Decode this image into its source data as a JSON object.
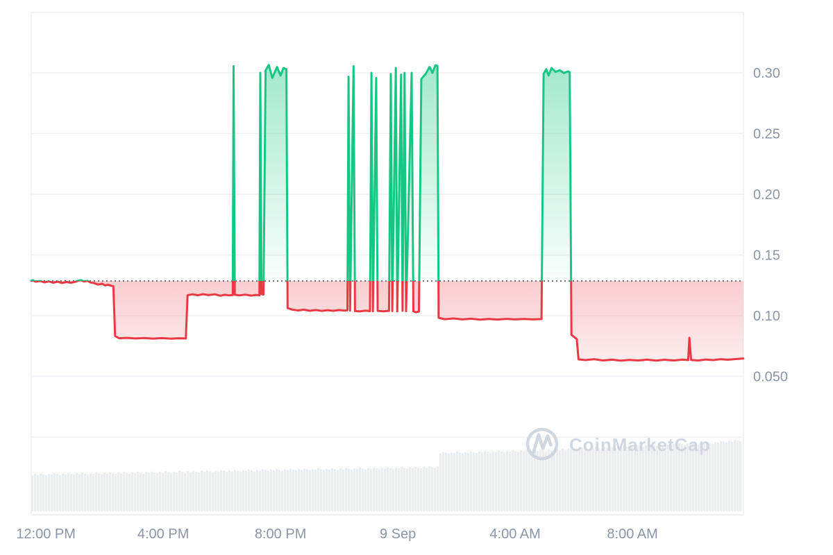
{
  "watermark": {
    "text": "CoinMarketCap",
    "logo": "coinmarketcap-m-in-circle"
  },
  "colors": {
    "up": "#16c784",
    "down": "#ea3943",
    "grid": "#eef0f3",
    "axis_label": "#8b95a7",
    "baseline_dots": "#6b6f76",
    "volume_bar": "#e9edf2",
    "watermark": "#cdd3de",
    "background": "#ffffff"
  },
  "chart_data": {
    "type": "line",
    "title": "",
    "xlabel": "",
    "ylabel": "",
    "grid": true,
    "legend_position": "none",
    "baseline_value": 0.1286,
    "baseline_style": "dotted",
    "x_axis": {
      "unit": "hours_from_start",
      "span_hours": 24.28,
      "ticks": [
        {
          "label": "12:00 PM",
          "hour": 0.5
        },
        {
          "label": "4:00 PM",
          "hour": 4.5
        },
        {
          "label": "8:00 PM",
          "hour": 8.5
        },
        {
          "label": "9 Sep",
          "hour": 12.5
        },
        {
          "label": "4:00 AM",
          "hour": 16.5
        },
        {
          "label": "8:00 AM",
          "hour": 20.5
        }
      ]
    },
    "y_axis": {
      "ticks": [
        {
          "label": "0.30",
          "value": 0.3
        },
        {
          "label": "0.25",
          "value": 0.25
        },
        {
          "label": "0.20",
          "value": 0.2
        },
        {
          "label": "0.15",
          "value": 0.15
        },
        {
          "label": "0.10",
          "value": 0.1
        },
        {
          "label": "0.050",
          "value": 0.05
        }
      ],
      "unlabeled_gridline_value": 0.0
    },
    "series": [
      [
        0.0,
        0.1288
      ],
      [
        0.05,
        0.1292
      ],
      [
        0.15,
        0.128
      ],
      [
        0.3,
        0.1286
      ],
      [
        0.45,
        0.1274
      ],
      [
        0.6,
        0.1283
      ],
      [
        0.75,
        0.1271
      ],
      [
        0.9,
        0.128
      ],
      [
        1.05,
        0.1269
      ],
      [
        1.2,
        0.1277
      ],
      [
        1.35,
        0.1271
      ],
      [
        1.5,
        0.1279
      ],
      [
        1.62,
        0.129
      ],
      [
        1.7,
        0.1292
      ],
      [
        1.8,
        0.1281
      ],
      [
        1.92,
        0.1287
      ],
      [
        2.02,
        0.1273
      ],
      [
        2.15,
        0.1268
      ],
      [
        2.28,
        0.1256
      ],
      [
        2.42,
        0.1263
      ],
      [
        2.52,
        0.1249
      ],
      [
        2.62,
        0.1255
      ],
      [
        2.72,
        0.1247
      ],
      [
        2.8,
        0.1242
      ],
      [
        2.86,
        0.0832
      ],
      [
        3.0,
        0.0814
      ],
      [
        3.25,
        0.0817
      ],
      [
        3.55,
        0.0812
      ],
      [
        3.85,
        0.0816
      ],
      [
        4.15,
        0.0811
      ],
      [
        4.45,
        0.0815
      ],
      [
        4.75,
        0.0811
      ],
      [
        5.05,
        0.0814
      ],
      [
        5.27,
        0.0812
      ],
      [
        5.33,
        0.1168
      ],
      [
        5.5,
        0.1176
      ],
      [
        5.68,
        0.1168
      ],
      [
        5.86,
        0.1177
      ],
      [
        6.05,
        0.1169
      ],
      [
        6.25,
        0.1176
      ],
      [
        6.45,
        0.1164
      ],
      [
        6.6,
        0.1172
      ],
      [
        6.75,
        0.1167
      ],
      [
        6.87,
        0.117
      ],
      [
        6.9,
        0.3055
      ],
      [
        6.94,
        0.1172
      ],
      [
        7.1,
        0.1167
      ],
      [
        7.3,
        0.1173
      ],
      [
        7.5,
        0.1165
      ],
      [
        7.68,
        0.1171
      ],
      [
        7.78,
        0.1167
      ],
      [
        7.81,
        0.3
      ],
      [
        7.85,
        0.1178
      ],
      [
        7.92,
        0.1174
      ],
      [
        7.99,
        0.302
      ],
      [
        8.1,
        0.3065
      ],
      [
        8.22,
        0.2958
      ],
      [
        8.38,
        0.3048
      ],
      [
        8.5,
        0.2978
      ],
      [
        8.6,
        0.304
      ],
      [
        8.7,
        0.303
      ],
      [
        8.74,
        0.1062
      ],
      [
        8.9,
        0.105
      ],
      [
        9.1,
        0.1043
      ],
      [
        9.3,
        0.1049
      ],
      [
        9.5,
        0.104
      ],
      [
        9.7,
        0.1046
      ],
      [
        9.9,
        0.1039
      ],
      [
        10.1,
        0.1045
      ],
      [
        10.3,
        0.104
      ],
      [
        10.5,
        0.1046
      ],
      [
        10.68,
        0.1041
      ],
      [
        10.78,
        0.1045
      ],
      [
        10.82,
        0.2968
      ],
      [
        10.87,
        0.1042
      ],
      [
        10.99,
        0.3055
      ],
      [
        11.04,
        0.1038
      ],
      [
        11.2,
        0.1035
      ],
      [
        11.4,
        0.1041
      ],
      [
        11.55,
        0.1037
      ],
      [
        11.6,
        0.3
      ],
      [
        11.65,
        0.1036
      ],
      [
        11.76,
        0.2958
      ],
      [
        11.81,
        0.104
      ],
      [
        12.0,
        0.1036
      ],
      [
        12.2,
        0.104
      ],
      [
        12.26,
        0.299
      ],
      [
        12.31,
        0.1038
      ],
      [
        12.43,
        0.304
      ],
      [
        12.48,
        0.1035
      ],
      [
        12.61,
        0.2985
      ],
      [
        12.66,
        0.104
      ],
      [
        12.73,
        0.3
      ],
      [
        12.78,
        0.1037
      ],
      [
        12.97,
        0.3
      ],
      [
        13.03,
        0.1036
      ],
      [
        13.12,
        0.1028
      ],
      [
        13.22,
        0.1034
      ],
      [
        13.3,
        0.295
      ],
      [
        13.45,
        0.2992
      ],
      [
        13.58,
        0.3048
      ],
      [
        13.68,
        0.3
      ],
      [
        13.78,
        0.3062
      ],
      [
        13.85,
        0.3058
      ],
      [
        13.89,
        0.0982
      ],
      [
        14.1,
        0.0971
      ],
      [
        14.4,
        0.0977
      ],
      [
        14.7,
        0.0969
      ],
      [
        15.0,
        0.0975
      ],
      [
        15.3,
        0.0967
      ],
      [
        15.6,
        0.0973
      ],
      [
        15.9,
        0.0968
      ],
      [
        16.2,
        0.0974
      ],
      [
        16.5,
        0.0969
      ],
      [
        16.8,
        0.0973
      ],
      [
        17.1,
        0.0969
      ],
      [
        17.4,
        0.0972
      ],
      [
        17.47,
        0.2992
      ],
      [
        17.56,
        0.303
      ],
      [
        17.64,
        0.2978
      ],
      [
        17.74,
        0.304
      ],
      [
        17.88,
        0.3008
      ],
      [
        18.02,
        0.3022
      ],
      [
        18.16,
        0.2998
      ],
      [
        18.3,
        0.3012
      ],
      [
        18.36,
        0.3005
      ],
      [
        18.42,
        0.0842
      ],
      [
        18.52,
        0.0822
      ],
      [
        18.6,
        0.0806
      ],
      [
        18.66,
        0.064
      ],
      [
        18.9,
        0.0634
      ],
      [
        19.2,
        0.0641
      ],
      [
        19.5,
        0.0631
      ],
      [
        19.8,
        0.0638
      ],
      [
        20.1,
        0.0629
      ],
      [
        20.4,
        0.0636
      ],
      [
        20.7,
        0.0631
      ],
      [
        21.0,
        0.0638
      ],
      [
        21.3,
        0.063
      ],
      [
        21.6,
        0.0637
      ],
      [
        21.9,
        0.0631
      ],
      [
        22.2,
        0.0638
      ],
      [
        22.4,
        0.0634
      ],
      [
        22.44,
        0.0818
      ],
      [
        22.5,
        0.0635
      ],
      [
        22.75,
        0.0631
      ],
      [
        23.0,
        0.0639
      ],
      [
        23.25,
        0.0634
      ],
      [
        23.5,
        0.0641
      ],
      [
        23.75,
        0.0637
      ],
      [
        24.0,
        0.0642
      ],
      [
        24.28,
        0.0647
      ]
    ],
    "volume_profile_segments": [
      [
        0.0,
        2.5,
        53,
        55
      ],
      [
        2.5,
        5.3,
        55,
        57
      ],
      [
        5.3,
        8.7,
        57,
        60
      ],
      [
        8.7,
        12.0,
        60,
        62
      ],
      [
        12.0,
        13.9,
        62,
        64
      ],
      [
        13.9,
        17.5,
        84,
        88
      ],
      [
        17.5,
        20.5,
        88,
        94
      ],
      [
        20.5,
        23.3,
        94,
        99
      ],
      [
        23.3,
        24.28,
        99,
        103
      ]
    ]
  }
}
